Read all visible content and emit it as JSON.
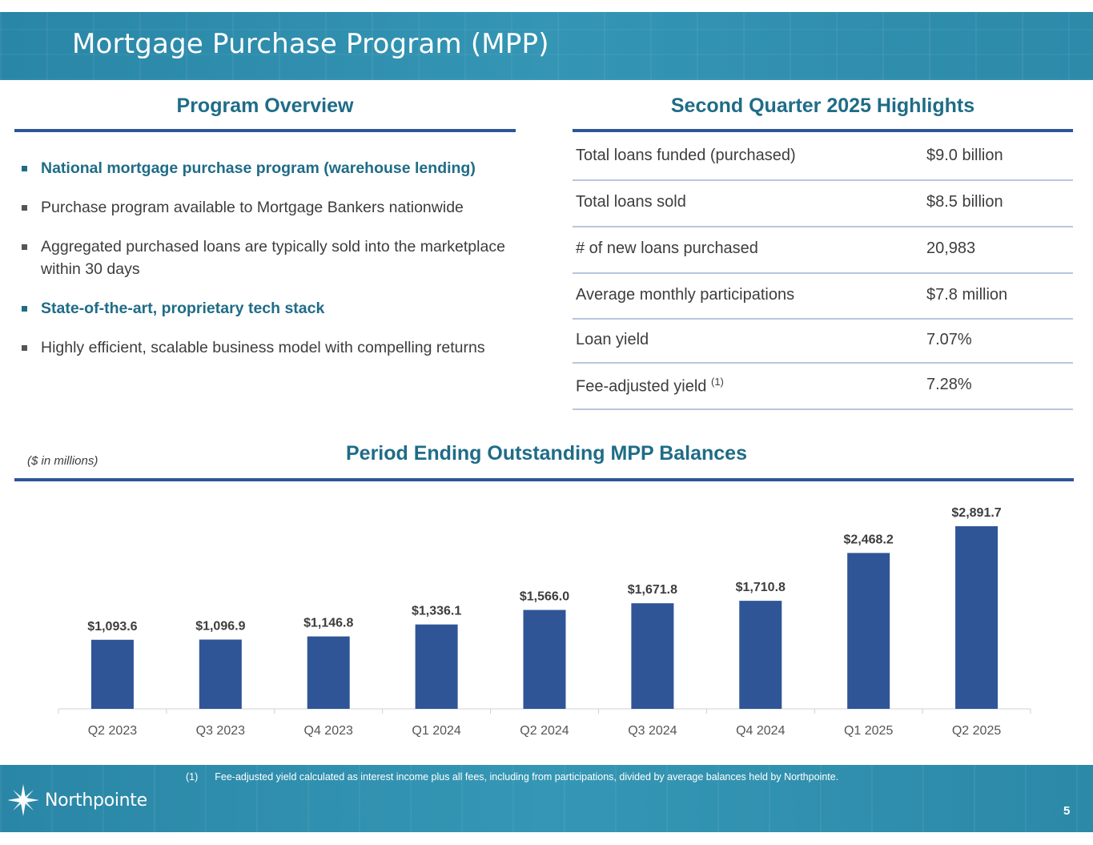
{
  "title": "Mortgage Purchase Program (MPP)",
  "overview": {
    "heading": "Program Overview",
    "bullets": [
      {
        "text": "National mortgage purchase program (warehouse lending)",
        "emphasis": true
      },
      {
        "text": "Purchase program available to Mortgage Bankers nationwide",
        "emphasis": false
      },
      {
        "text": "Aggregated purchased loans are typically sold into the marketplace within 30 days",
        "emphasis": false
      },
      {
        "text": "State-of-the-art, proprietary tech stack",
        "emphasis": true
      },
      {
        "text": "Highly efficient, scalable business model with compelling returns",
        "emphasis": false
      }
    ]
  },
  "highlights": {
    "heading": "Second Quarter 2025 Highlights",
    "rows": [
      {
        "label": "Total loans funded (purchased)",
        "value": "$9.0 billion"
      },
      {
        "label": "Total loans sold",
        "value": "$8.5 billion"
      },
      {
        "label": "# of new loans purchased",
        "value": "20,983"
      },
      {
        "label": "Average monthly participations",
        "value": "$7.8 million"
      },
      {
        "label": "Loan yield",
        "value": "7.07%"
      },
      {
        "label": "Fee-adjusted yield",
        "value": "7.28%",
        "footnote_ref": "(1)"
      }
    ]
  },
  "chart_data": {
    "type": "bar",
    "title": "Period Ending Outstanding MPP Balances",
    "unit_note": "($ in millions)",
    "categories": [
      "Q2 2023",
      "Q3 2023",
      "Q4 2023",
      "Q1 2024",
      "Q2 2024",
      "Q3 2024",
      "Q4 2024",
      "Q1 2025",
      "Q2 2025"
    ],
    "values": [
      1093.6,
      1096.9,
      1146.8,
      1336.1,
      1566.0,
      1671.8,
      1710.8,
      2468.2,
      2891.7
    ],
    "data_labels": [
      "$1,093.6",
      "$1,096.9",
      "$1,146.8",
      "$1,336.1",
      "$1,566.0",
      "$1,671.8",
      "$1,710.8",
      "$2,468.2",
      "$2,891.7"
    ],
    "ylim": [
      0,
      3000
    ],
    "xlabel": "",
    "ylabel": "",
    "grid": false,
    "bar_color": "#2f5597"
  },
  "footer": {
    "footnote_marker": "(1)",
    "footnote": "Fee-adjusted yield calculated as interest income plus all fees, including from participations, divided by average balances held by Northpointe.",
    "logo_text": "Northpointe",
    "page_number": "5"
  },
  "colors": {
    "header_bg": "#2f8fae",
    "heading": "#1f6c87",
    "rule": "#2f5597",
    "row_border": "#b8c7dd"
  }
}
